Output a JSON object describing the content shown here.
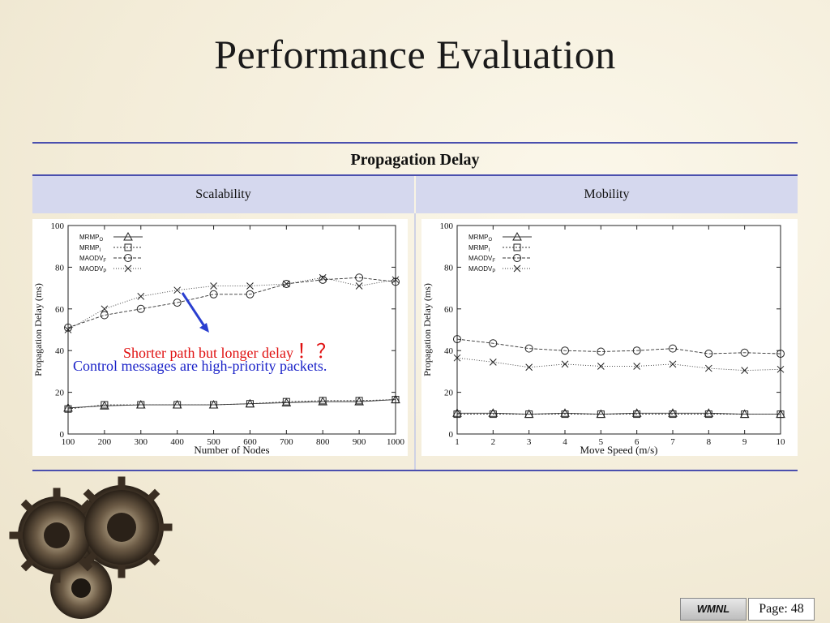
{
  "slide": {
    "title": "Performance Evaluation",
    "table_header": "Propagation Delay",
    "col_left": "Scalability",
    "col_right": "Mobility",
    "annotation_red": "Shorter path but longer delay",
    "annotation_marks": "！？",
    "annotation_blue": "Control messages are high-priority packets.",
    "footer_logo": "WMNL",
    "footer_page": "Page: 48"
  },
  "colors": {
    "rule": "#4a4fae",
    "subhead_bg": "#d5d8ee",
    "arrow": "#2a3fd0",
    "red_text": "#e01010",
    "blue_text": "#1a22c8"
  },
  "chart_data": [
    {
      "type": "line",
      "xlabel": "Number of Nodes",
      "ylabel": "Propagation Delay (ms)",
      "x": [
        100,
        200,
        300,
        400,
        500,
        600,
        700,
        800,
        900,
        1000
      ],
      "xticks": [
        100,
        200,
        300,
        400,
        500,
        600,
        700,
        800,
        900,
        1000
      ],
      "xlim": [
        100,
        1000
      ],
      "ylim": [
        0,
        100
      ],
      "yticks": [
        0,
        20,
        40,
        60,
        80,
        100
      ],
      "legend": "top-left",
      "series": [
        {
          "name": "MRMP",
          "sub": "O",
          "marker": "triangle",
          "dash": "",
          "values": [
            12.5,
            13.5,
            14,
            14,
            14,
            14.5,
            15,
            15.5,
            15.5,
            16.5
          ]
        },
        {
          "name": "MRMP",
          "sub": "I",
          "marker": "square",
          "dash": "2,2",
          "values": [
            12,
            14,
            14,
            14,
            14,
            14.5,
            15.5,
            16,
            16,
            16.5
          ]
        },
        {
          "name": "MAODV",
          "sub": "F",
          "marker": "circle",
          "dash": "4,2",
          "values": [
            51,
            57,
            60,
            63,
            67,
            67,
            72,
            74,
            75,
            73
          ]
        },
        {
          "name": "MAODV",
          "sub": "P",
          "marker": "x",
          "dash": "1,2",
          "values": [
            50,
            60,
            66,
            69,
            71,
            71,
            72,
            75,
            71,
            74
          ]
        }
      ]
    },
    {
      "type": "line",
      "xlabel": "Move Speed (m/s)",
      "ylabel": "Propagation Delay (ms)",
      "x": [
        1,
        2,
        3,
        4,
        5,
        6,
        7,
        8,
        9,
        10
      ],
      "xticks": [
        1,
        2,
        3,
        4,
        5,
        6,
        7,
        8,
        9,
        10
      ],
      "xlim": [
        1,
        10
      ],
      "ylim": [
        0,
        100
      ],
      "yticks": [
        0,
        20,
        40,
        60,
        80,
        100
      ],
      "legend": "top-left",
      "series": [
        {
          "name": "MRMP",
          "sub": "O",
          "marker": "triangle",
          "dash": "",
          "values": [
            10,
            10,
            9.5,
            10,
            9.5,
            10,
            10,
            10,
            9.5,
            9.5
          ]
        },
        {
          "name": "MRMP",
          "sub": "I",
          "marker": "square",
          "dash": "2,2",
          "values": [
            9.5,
            9.5,
            9.5,
            9.5,
            9.5,
            9.5,
            9.5,
            9.5,
            9.5,
            9.5
          ]
        },
        {
          "name": "MAODV",
          "sub": "F",
          "marker": "circle",
          "dash": "4,2",
          "values": [
            45.5,
            43.5,
            41,
            40,
            39.5,
            40,
            41,
            38.5,
            39,
            38.5
          ]
        },
        {
          "name": "MAODV",
          "sub": "P",
          "marker": "x",
          "dash": "1,2",
          "values": [
            36.5,
            34.5,
            32,
            33.5,
            32.5,
            32.5,
            33.5,
            31.5,
            30.5,
            31
          ]
        }
      ]
    }
  ]
}
